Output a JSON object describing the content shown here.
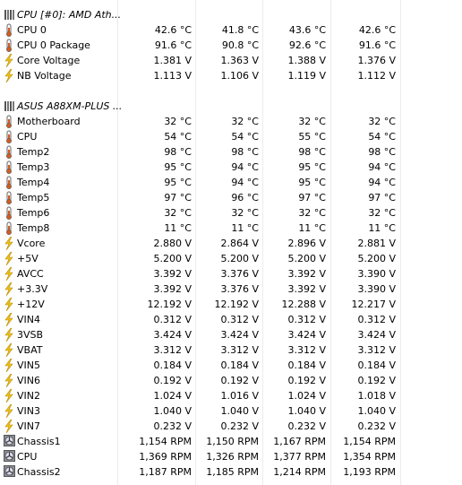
{
  "sections": [
    {
      "title": "CPU [#0]: AMD Ath...",
      "rows": [
        {
          "label": "CPU 0",
          "values": [
            "42.6 °C",
            "41.8 °C",
            "43.6 °C",
            "42.6 °C"
          ]
        },
        {
          "label": "CPU 0 Package",
          "values": [
            "91.6 °C",
            "90.8 °C",
            "92.6 °C",
            "91.6 °C"
          ]
        },
        {
          "label": "Core Voltage",
          "values": [
            "1.381 V",
            "1.363 V",
            "1.388 V",
            "1.376 V"
          ]
        },
        {
          "label": "NB Voltage",
          "values": [
            "1.113 V",
            "1.106 V",
            "1.119 V",
            "1.112 V"
          ]
        }
      ]
    },
    {
      "title": "ASUS A88XM-PLUS ...",
      "rows": [
        {
          "label": "Motherboard",
          "values": [
            "32 °C",
            "32 °C",
            "32 °C",
            "32 °C"
          ]
        },
        {
          "label": "CPU",
          "values": [
            "54 °C",
            "54 °C",
            "55 °C",
            "54 °C"
          ]
        },
        {
          "label": "Temp2",
          "values": [
            "98 °C",
            "98 °C",
            "98 °C",
            "98 °C"
          ]
        },
        {
          "label": "Temp3",
          "values": [
            "95 °C",
            "94 °C",
            "95 °C",
            "94 °C"
          ]
        },
        {
          "label": "Temp4",
          "values": [
            "95 °C",
            "94 °C",
            "95 °C",
            "94 °C"
          ]
        },
        {
          "label": "Temp5",
          "values": [
            "97 °C",
            "96 °C",
            "97 °C",
            "97 °C"
          ]
        },
        {
          "label": "Temp6",
          "values": [
            "32 °C",
            "32 °C",
            "32 °C",
            "32 °C"
          ]
        },
        {
          "label": "Temp8",
          "values": [
            "11 °C",
            "11 °C",
            "11 °C",
            "11 °C"
          ]
        },
        {
          "label": "Vcore",
          "values": [
            "2.880 V",
            "2.864 V",
            "2.896 V",
            "2.881 V"
          ]
        },
        {
          "label": "+5V",
          "values": [
            "5.200 V",
            "5.200 V",
            "5.200 V",
            "5.200 V"
          ]
        },
        {
          "label": "AVCC",
          "values": [
            "3.392 V",
            "3.376 V",
            "3.392 V",
            "3.390 V"
          ]
        },
        {
          "label": "+3.3V",
          "values": [
            "3.392 V",
            "3.376 V",
            "3.392 V",
            "3.390 V"
          ]
        },
        {
          "label": "+12V",
          "values": [
            "12.192 V",
            "12.192 V",
            "12.288 V",
            "12.217 V"
          ]
        },
        {
          "label": "VIN4",
          "values": [
            "0.312 V",
            "0.312 V",
            "0.312 V",
            "0.312 V"
          ]
        },
        {
          "label": "3VSB",
          "values": [
            "3.424 V",
            "3.424 V",
            "3.424 V",
            "3.424 V"
          ]
        },
        {
          "label": "VBAT",
          "values": [
            "3.312 V",
            "3.312 V",
            "3.312 V",
            "3.312 V"
          ]
        },
        {
          "label": "VIN5",
          "values": [
            "0.184 V",
            "0.184 V",
            "0.184 V",
            "0.184 V"
          ]
        },
        {
          "label": "VIN6",
          "values": [
            "0.192 V",
            "0.192 V",
            "0.192 V",
            "0.192 V"
          ]
        },
        {
          "label": "VIN2",
          "values": [
            "1.024 V",
            "1.016 V",
            "1.024 V",
            "1.018 V"
          ]
        },
        {
          "label": "VIN3",
          "values": [
            "1.040 V",
            "1.040 V",
            "1.040 V",
            "1.040 V"
          ]
        },
        {
          "label": "VIN7",
          "values": [
            "0.232 V",
            "0.232 V",
            "0.232 V",
            "0.232 V"
          ]
        },
        {
          "label": "Chassis1",
          "values": [
            "1,154 RPM",
            "1,150 RPM",
            "1,167 RPM",
            "1,154 RPM"
          ]
        },
        {
          "label": "CPU",
          "values": [
            "1,369 RPM",
            "1,326 RPM",
            "1,377 RPM",
            "1,354 RPM"
          ]
        },
        {
          "label": "Chassis2",
          "values": [
            "1,187 RPM",
            "1,185 RPM",
            "1,214 RPM",
            "1,193 RPM"
          ]
        }
      ]
    }
  ]
}
